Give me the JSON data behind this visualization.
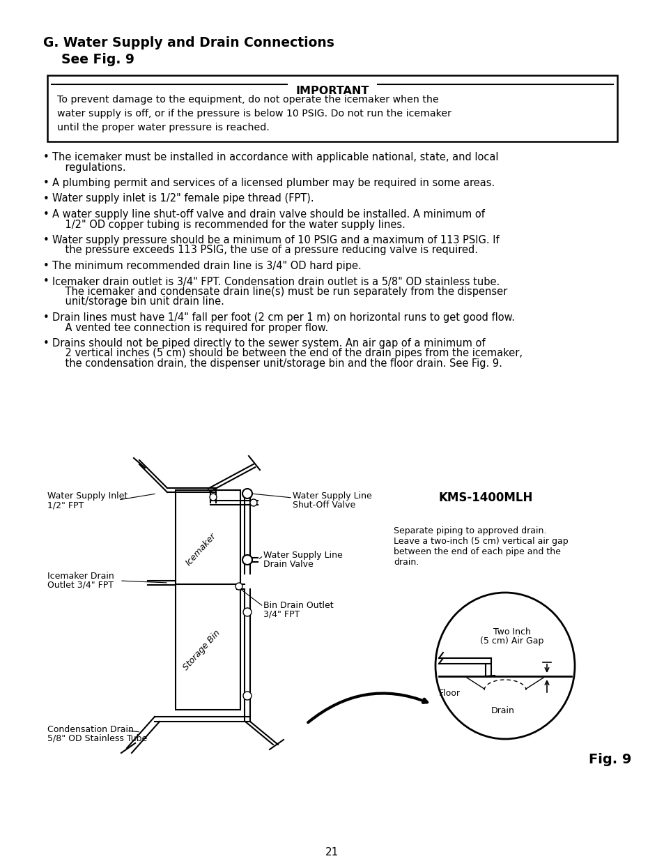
{
  "bg_color": "#ffffff",
  "title_line1": "G. Water Supply and Drain Connections",
  "title_line2": "    See Fig. 9",
  "important_title": "IMPORTANT",
  "important_text": "To prevent damage to the equipment, do not operate the icemaker when the\nwater supply is off, or if the pressure is below 10 PSIG. Do not run the icemaker\nuntil the proper water pressure is reached.",
  "bullets": [
    [
      "The icemaker must be installed in accordance with applicable national, state, and local",
      "    regulations."
    ],
    [
      "A plumbing permit and services of a licensed plumber may be required in some areas."
    ],
    [
      "Water supply inlet is 1/2\" female pipe thread (FPT)."
    ],
    [
      "A water supply line shut-off valve and drain valve should be installed. A minimum of",
      "    1/2\" OD copper tubing is recommended for the water supply lines."
    ],
    [
      "Water supply pressure should be a minimum of 10 PSIG and a maximum of 113 PSIG. If",
      "    the pressure exceeds 113 PSIG, the use of a pressure reducing valve is required."
    ],
    [
      "The minimum recommended drain line is 3/4\" OD hard pipe."
    ],
    [
      "Icemaker drain outlet is 3/4\" FPT. Condensation drain outlet is a 5/8\" OD stainless tube.",
      "    The icemaker and condensate drain line(s) must be run separately from the dispenser",
      "    unit/storage bin unit drain line."
    ],
    [
      "Drain lines must have 1/4\" fall per foot (2 cm per 1 m) on horizontal runs to get good flow.",
      "    A vented tee connection is required for proper flow."
    ],
    [
      "Drains should not be piped directly to the sewer system. An air gap of a minimum of",
      "    2 vertical inches (5 cm) should be between the end of the drain pipes from the icemaker,",
      "    the condensation drain, the dispenser unit/storage bin and the floor drain. See Fig. 9."
    ]
  ],
  "page_number": "21",
  "fig_label": "Fig. 9",
  "model_label": "KMS-1400MLH"
}
